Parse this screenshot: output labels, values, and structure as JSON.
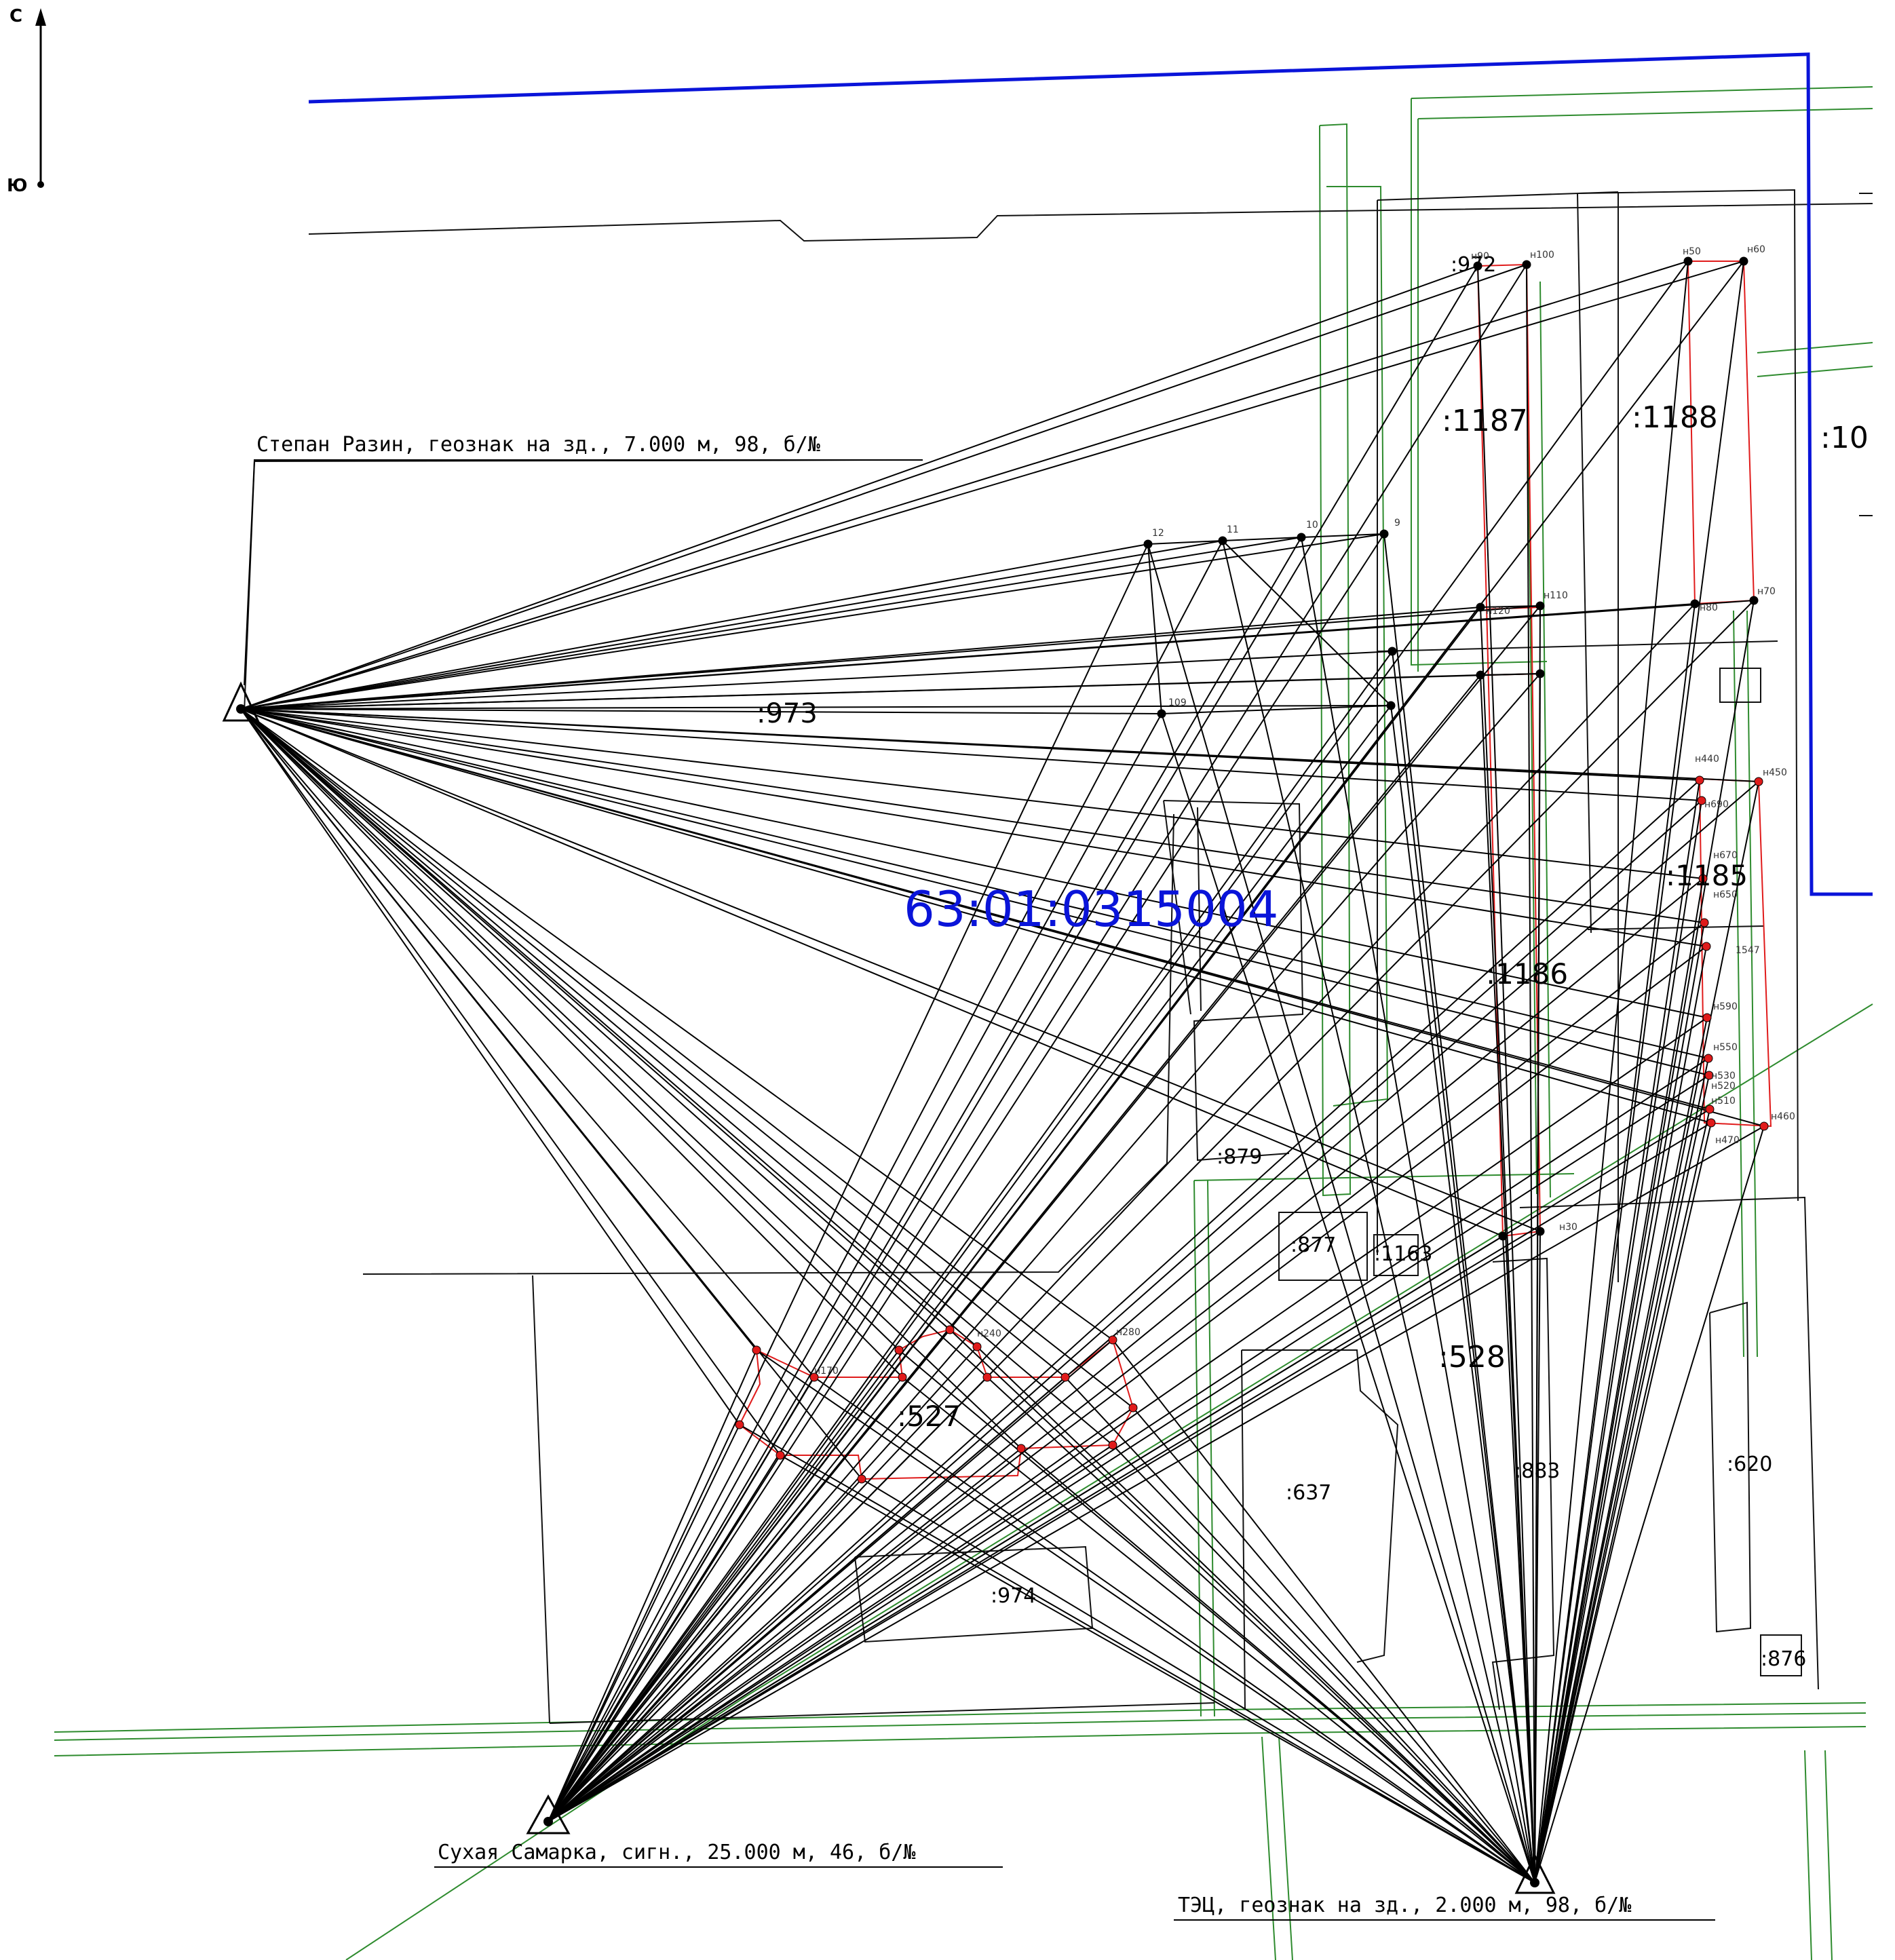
{
  "compass": {
    "north": "С",
    "south": "Ю"
  },
  "block_number": "63:01:0315004",
  "stations": [
    {
      "id": "razin",
      "caption": "Степан Разин, геознак на зд., 7.000 м, 98, б/№"
    },
    {
      "id": "samarka",
      "caption": "Сухая Самарка, сигн., 25.000 м, 46, б/№"
    },
    {
      "id": "tec",
      "caption": "ТЭЦ, геознак на зд., 2.000 м, 98, б/№"
    }
  ],
  "parcels": [
    {
      "id": "p972",
      "label": ":972"
    },
    {
      "id": "p1187",
      "label": ":1187"
    },
    {
      "id": "p1188",
      "label": ":1188"
    },
    {
      "id": "p10",
      "label": ":10"
    },
    {
      "id": "p973",
      "label": ":973"
    },
    {
      "id": "p1185",
      "label": ":1185"
    },
    {
      "id": "p1186",
      "label": ":1186"
    },
    {
      "id": "p879",
      "label": ":879"
    },
    {
      "id": "p877",
      "label": ":877"
    },
    {
      "id": "p1163",
      "label": ":1163"
    },
    {
      "id": "p528",
      "label": ":528"
    },
    {
      "id": "p527",
      "label": ":527"
    },
    {
      "id": "p637",
      "label": ":637"
    },
    {
      "id": "p883",
      "label": ":883"
    },
    {
      "id": "p620",
      "label": ":620"
    },
    {
      "id": "p974",
      "label": ":974"
    },
    {
      "id": "p876",
      "label": ":876"
    }
  ],
  "points": [
    {
      "id": "n90",
      "label": "н90"
    },
    {
      "id": "n100",
      "label": "н100"
    },
    {
      "id": "n50",
      "label": "н50"
    },
    {
      "id": "n60",
      "label": "н60"
    },
    {
      "id": "t12",
      "label": "12"
    },
    {
      "id": "t11",
      "label": "11"
    },
    {
      "id": "t10",
      "label": "10"
    },
    {
      "id": "t9",
      "label": "9"
    },
    {
      "id": "n120",
      "label": "н120"
    },
    {
      "id": "n110",
      "label": "н110"
    },
    {
      "id": "n80",
      "label": "н80"
    },
    {
      "id": "n70",
      "label": "н70"
    },
    {
      "id": "t109",
      "label": "109"
    },
    {
      "id": "n440",
      "label": "н440"
    },
    {
      "id": "n450",
      "label": "н450"
    },
    {
      "id": "n690",
      "label": "н690"
    },
    {
      "id": "n670",
      "label": "н670"
    },
    {
      "id": "n650",
      "label": "н650"
    },
    {
      "id": "n590",
      "label": "н590"
    },
    {
      "id": "n550",
      "label": "н550"
    },
    {
      "id": "n530",
      "label": "н530"
    },
    {
      "id": "n520",
      "label": "н520"
    },
    {
      "id": "n510",
      "label": "н510"
    },
    {
      "id": "n460",
      "label": "н460"
    },
    {
      "id": "n470",
      "label": "н470"
    },
    {
      "id": "n30",
      "label": "н30"
    },
    {
      "id": "n170",
      "label": "н170"
    },
    {
      "id": "n240",
      "label": "н240"
    },
    {
      "id": "n280",
      "label": "н280"
    },
    {
      "id": "t1547",
      "label": "1547"
    }
  ]
}
